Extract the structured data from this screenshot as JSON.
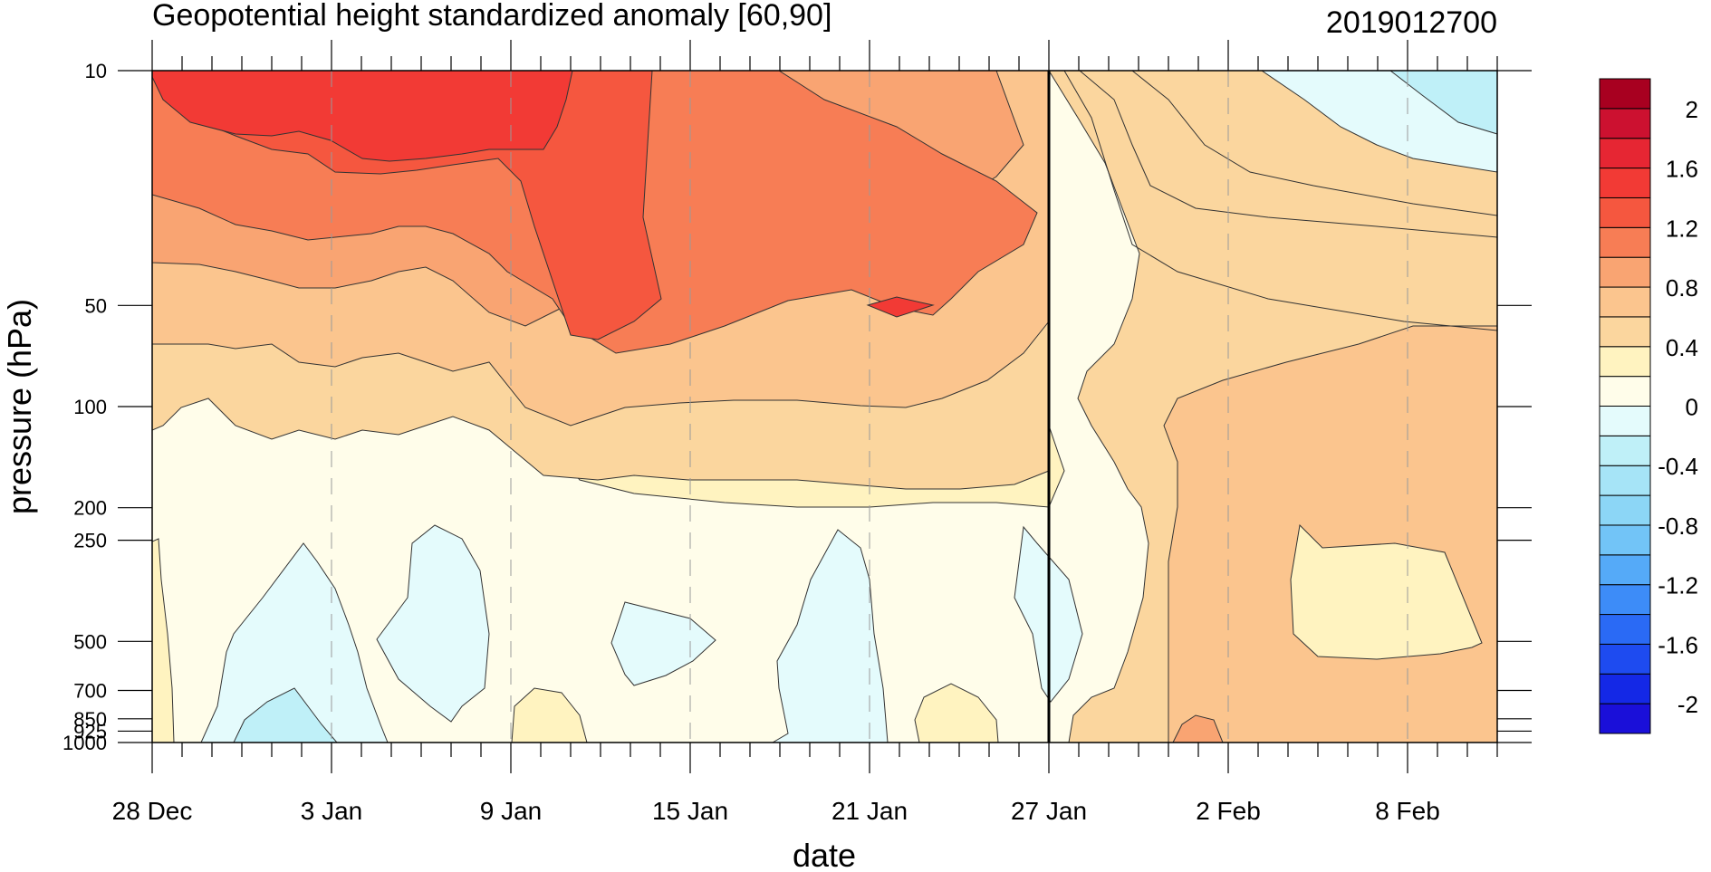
{
  "chart_data": {
    "type": "heatmap",
    "title": "Geopotential height standardized anomaly [60,90]",
    "title_right": "2019012700",
    "xlabel": "date",
    "ylabel": "pressure (hPa)",
    "x_axis": {
      "start": "28 Dec",
      "end_day_offset": 45,
      "tick_labels": [
        {
          "label": "28 Dec",
          "day": 0
        },
        {
          "label": "3 Jan",
          "day": 6
        },
        {
          "label": "9 Jan",
          "day": 12
        },
        {
          "label": "15 Jan",
          "day": 18
        },
        {
          "label": "21 Jan",
          "day": 24
        },
        {
          "label": "27 Jan",
          "day": 30
        },
        {
          "label": "2 Feb",
          "day": 36
        },
        {
          "label": "8 Feb",
          "day": 42
        }
      ],
      "current_date_marker": "27 Jan"
    },
    "y_axis": {
      "scale": "log",
      "inverted": true,
      "range": [
        1000,
        10
      ],
      "tick_labels": [
        "10",
        "50",
        "100",
        "200",
        "250",
        "500",
        "700",
        "850",
        "925",
        "1000"
      ],
      "tick_values": [
        10,
        50,
        100,
        200,
        250,
        500,
        700,
        850,
        925,
        1000
      ]
    },
    "colorbar": {
      "labels": [
        "2",
        "1.6",
        "1.2",
        "0.8",
        "0.4",
        "0",
        "-0.4",
        "-0.8",
        "-1.2",
        "-1.6",
        "-2"
      ],
      "levels": [
        -2.2,
        -2.0,
        -1.8,
        -1.6,
        -1.4,
        -1.2,
        -1.0,
        -0.8,
        -0.6,
        -0.4,
        -0.2,
        0,
        0.2,
        0.4,
        0.6,
        0.8,
        1.0,
        1.2,
        1.4,
        1.6,
        1.8,
        2.0,
        2.2
      ],
      "colors_bottom_to_top": [
        "#1a0fd9",
        "#1428e6",
        "#1e4bf0",
        "#2a6af5",
        "#3d8cf8",
        "#55aaf8",
        "#72c4f7",
        "#8cd6f6",
        "#a6e4f7",
        "#bff0f8",
        "#e4fbfc",
        "#fffdea",
        "#fff3c0",
        "#fbd69e",
        "#fbc58e",
        "#f9a472",
        "#f77d55",
        "#f5573f",
        "#f23a35",
        "#e62633",
        "#cc1130",
        "#a80020"
      ]
    },
    "contour_fields_description_values": {
      "upper_left_max": 1.8,
      "center_max_near_21Jan_50hPa": 1.8,
      "upper_right_min": -0.4,
      "lower_left_min": -0.4
    }
  }
}
